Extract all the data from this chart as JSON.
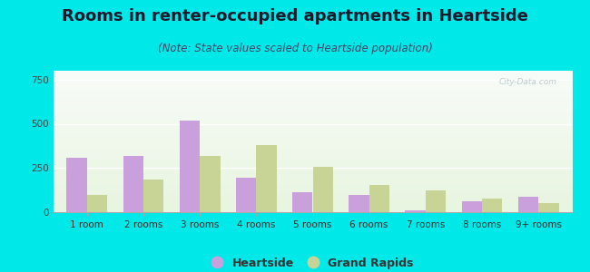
{
  "title": "Rooms in renter-occupied apartments in Heartside",
  "subtitle": "(Note: State values scaled to Heartside population)",
  "categories": [
    "1 room",
    "2 rooms",
    "3 rooms",
    "4 rooms",
    "5 rooms",
    "6 rooms",
    "7 rooms",
    "8 rooms",
    "9+ rooms"
  ],
  "heartside": [
    310,
    320,
    520,
    195,
    115,
    95,
    10,
    60,
    85
  ],
  "grand_rapids": [
    100,
    185,
    320,
    380,
    255,
    155,
    125,
    75,
    50
  ],
  "heartside_color": "#c9a0dc",
  "grand_rapids_color": "#c8d496",
  "background_outer": "#00e8e8",
  "ylim": [
    0,
    800
  ],
  "yticks": [
    0,
    250,
    500,
    750
  ],
  "bar_width": 0.36,
  "title_fontsize": 13,
  "subtitle_fontsize": 8.5,
  "tick_fontsize": 7.5,
  "legend_fontsize": 9
}
